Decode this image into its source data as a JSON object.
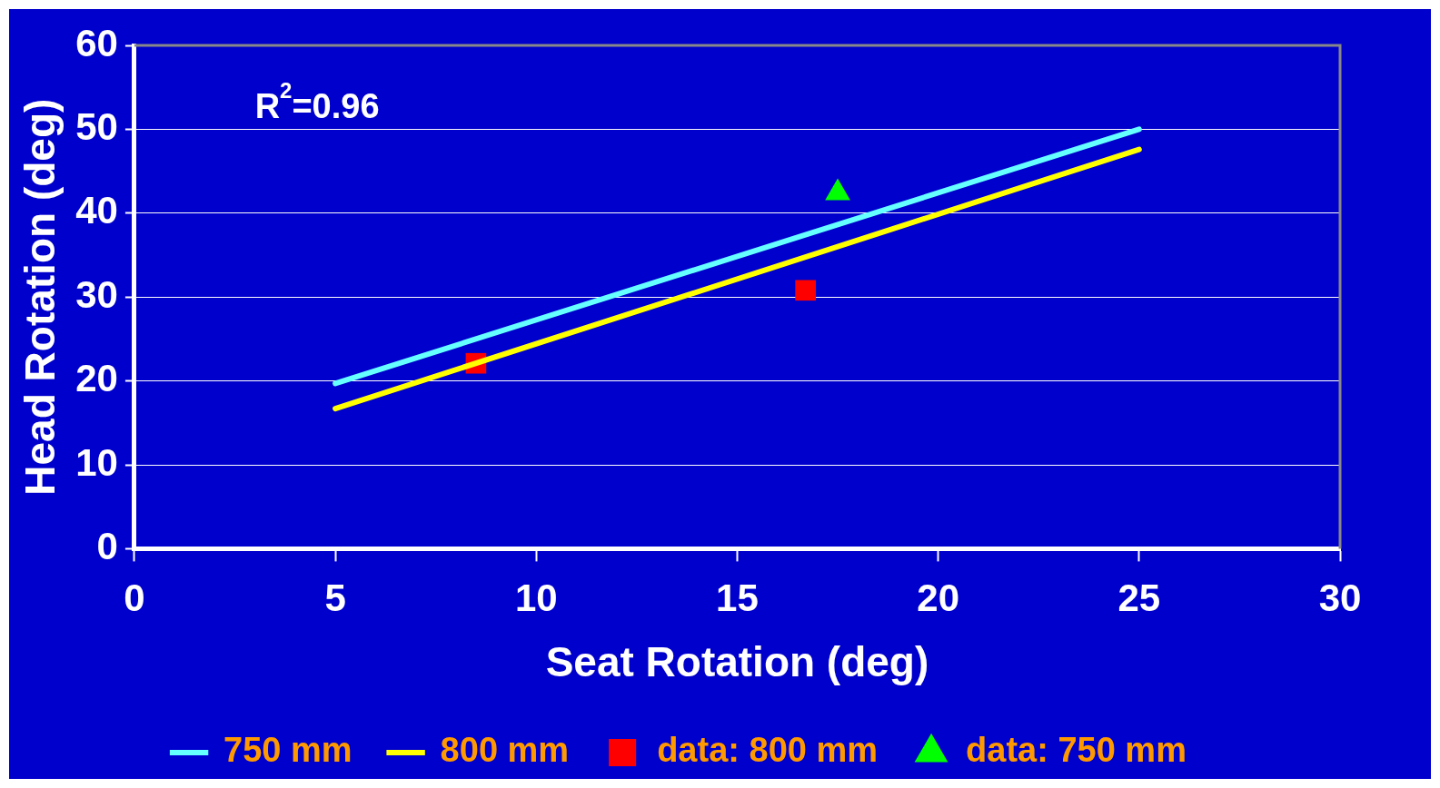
{
  "chart_data": {
    "type": "line",
    "xlabel": "Seat Rotation (deg)",
    "ylabel": "Head Rotation (deg)",
    "xlim": [
      0,
      30
    ],
    "xticks": [
      0,
      5,
      10,
      15,
      20,
      25,
      30
    ],
    "ylim": [
      0,
      60
    ],
    "yticks": [
      0,
      10,
      20,
      30,
      40,
      50,
      60
    ],
    "grid": "y",
    "legend": "bottom",
    "annotations": [
      "R$^{2}$=0.96"
    ],
    "series": [
      {
        "name": "750 mm",
        "marker": "none",
        "color": "#66ffff",
        "x": [
          5,
          25
        ],
        "values": [
          19.7,
          50
        ]
      },
      {
        "name": "800 mm",
        "marker": "none",
        "color": "#ffff00",
        "x": [
          5,
          25
        ],
        "values": [
          16.7,
          47.6
        ]
      },
      {
        "name": "data: 800 mm",
        "type": "scatter",
        "marker": "square",
        "color": "#ff0000",
        "x": [
          8.5,
          16.7
        ],
        "values": [
          22.1,
          30.8
        ]
      },
      {
        "name": "data: 750 mm",
        "type": "scatter",
        "marker": "triangle",
        "color": "#00ff00",
        "x": [
          17.5
        ],
        "values": [
          42.4
        ]
      }
    ]
  }
}
